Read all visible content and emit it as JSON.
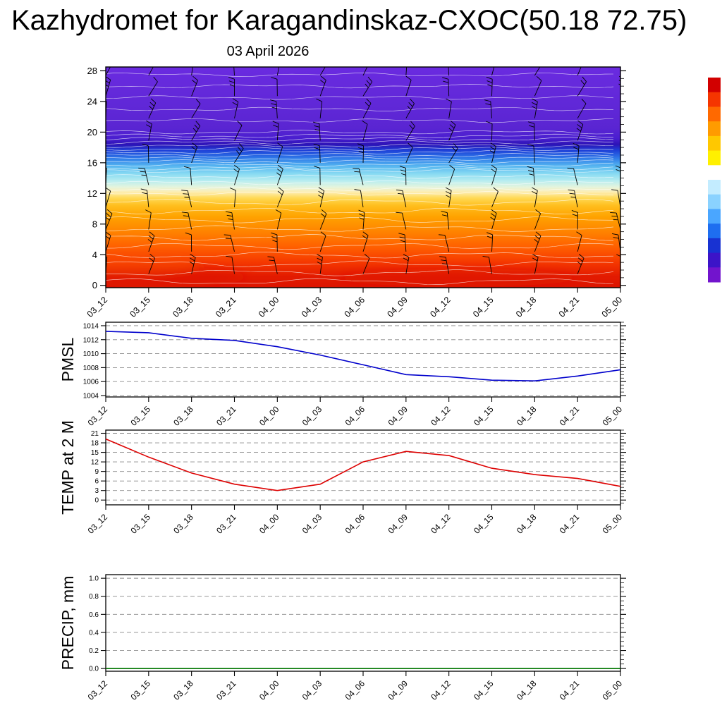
{
  "title": "Kazhydromet for Karagandinskaz-CXOC(50.18 72.75)",
  "subtitle": "03 April 2026",
  "x_labels": [
    "03_12",
    "03_15",
    "03_18",
    "03_21",
    "04_00",
    "04_03",
    "04_06",
    "04_09",
    "04_12",
    "04_15",
    "04_18",
    "04_21",
    "05_00"
  ],
  "chart_data": [
    {
      "type": "heatmap",
      "title": "Time-height cross-section: temperature shading with wind barbs",
      "x": [
        "03_12",
        "03_15",
        "03_18",
        "03_21",
        "04_00",
        "04_03",
        "04_06",
        "04_09",
        "04_12",
        "04_15",
        "04_18",
        "04_21",
        "05_00"
      ],
      "y_ticks": [
        0,
        4,
        8,
        12,
        16,
        20,
        24,
        28
      ],
      "ylim": [
        -0.3,
        28.5
      ],
      "grid": false,
      "overlay": "wind-barbs at every time step and level, white contour lines",
      "bands": [
        {
          "level_top": 28.5,
          "level_bottom": 19.0,
          "color": "#6128d8",
          "desc": "violet (coldest, upper levels)"
        },
        {
          "level_top": 19.0,
          "level_bottom": 17.6,
          "color": "#2d13b6",
          "desc": "dark blue band"
        },
        {
          "level_top": 17.6,
          "level_bottom": 15.0,
          "color": "#3c8cf0",
          "desc": "blue"
        },
        {
          "level_top": 15.0,
          "level_bottom": 13.0,
          "color": "#8cdcf2",
          "desc": "cyan"
        },
        {
          "level_top": 13.0,
          "level_bottom": 12.0,
          "color": "#f5edbe",
          "desc": "pale yellow transition"
        },
        {
          "level_top": 12.0,
          "level_bottom": 9.0,
          "color": "#ffbe1e",
          "desc": "yellow-orange"
        },
        {
          "level_top": 9.0,
          "level_bottom": 4.0,
          "color": "#ff7800",
          "desc": "orange"
        },
        {
          "level_top": 4.0,
          "level_bottom": 0.0,
          "color": "#e62800",
          "desc": "red (warmest, near surface)"
        }
      ]
    },
    {
      "type": "line",
      "title": "PMSL",
      "ylabel": "PMSL",
      "color": "#0000cc",
      "x": [
        "03_12",
        "03_15",
        "03_18",
        "03_21",
        "04_00",
        "04_03",
        "04_06",
        "04_09",
        "04_12",
        "04_15",
        "04_18",
        "04_21",
        "05_00"
      ],
      "values": [
        1013.2,
        1013.0,
        1012.2,
        1011.9,
        1011.0,
        1009.8,
        1008.4,
        1007.0,
        1006.7,
        1006.2,
        1006.1,
        1006.8,
        1007.7
      ],
      "y_ticks": [
        1004,
        1006,
        1008,
        1010,
        1012,
        1014
      ],
      "ylim": [
        1003.8,
        1014.5
      ],
      "grid": "dashed"
    },
    {
      "type": "line",
      "title": "TEMP at 2 M",
      "ylabel": "TEMP at 2 M",
      "color": "#dd0000",
      "x": [
        "03_12",
        "03_15",
        "03_18",
        "03_21",
        "04_00",
        "04_03",
        "04_06",
        "04_09",
        "04_12",
        "04_15",
        "04_18",
        "04_21",
        "05_00"
      ],
      "values": [
        19.2,
        13.5,
        8.5,
        5.0,
        3.0,
        5.0,
        12.0,
        15.3,
        14.0,
        10.0,
        8.0,
        6.8,
        4.3
      ],
      "y_ticks": [
        0,
        3,
        6,
        9,
        12,
        15,
        18,
        21
      ],
      "ylim": [
        -1.5,
        22
      ],
      "grid": "dashed"
    },
    {
      "type": "line",
      "title": "PRECIP, mm",
      "ylabel": "PRECIP, mm",
      "color": "#007700",
      "x": [
        "03_12",
        "03_15",
        "03_18",
        "03_21",
        "04_00",
        "04_03",
        "04_06",
        "04_09",
        "04_12",
        "04_15",
        "04_18",
        "04_21",
        "05_00"
      ],
      "values": [
        0,
        0,
        0,
        0,
        0,
        0,
        0,
        0,
        0,
        0,
        0,
        0,
        0
      ],
      "y_ticks": [
        0.0,
        0.2,
        0.4,
        0.6,
        0.8,
        1.0
      ],
      "ylim": [
        -0.03,
        1.04
      ],
      "grid": "dashed"
    }
  ],
  "colorbar": {
    "orientation": "vertical",
    "segments_top_to_bottom": [
      "#d20000",
      "#f53500",
      "#ff6900",
      "#ff9b00",
      "#ffc800",
      "#fff000",
      "#ffffff",
      "#c3ecff",
      "#8ad2ff",
      "#4aa6ff",
      "#1e6ef0",
      "#1832d2",
      "#3c14c8",
      "#7214cd"
    ]
  },
  "colors": {
    "axis": "#000000",
    "grid": "#8a8a8a",
    "background": "#ffffff"
  }
}
